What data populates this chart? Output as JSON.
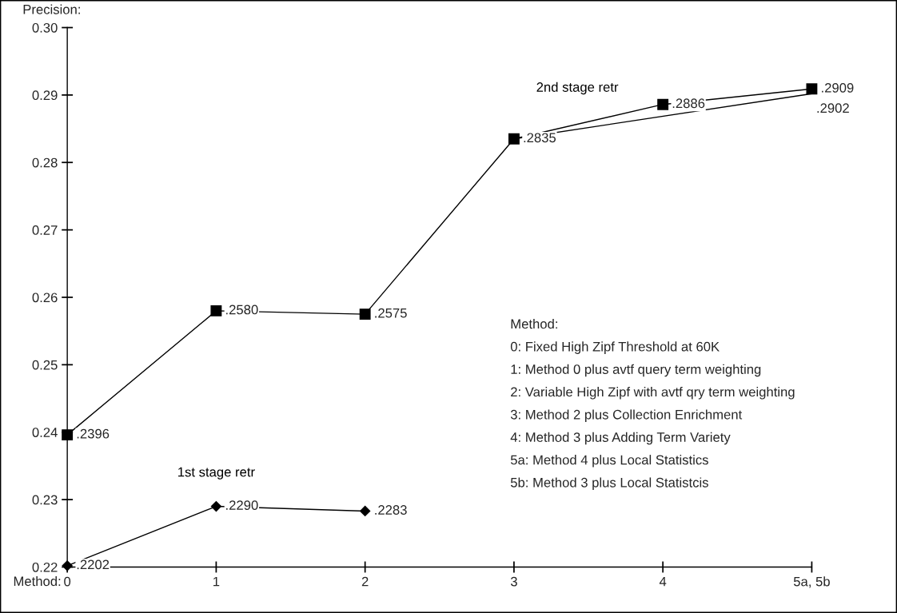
{
  "chart_data": {
    "type": "line",
    "ylabel": "Precision:",
    "xlabel": "Method:",
    "categories": [
      "0",
      "1",
      "2",
      "3",
      "4",
      "5a, 5b"
    ],
    "ylim": [
      0.22,
      0.3
    ],
    "yticks": [
      {
        "value": 0.22,
        "label": "0.22"
      },
      {
        "value": 0.23,
        "label": "0.23"
      },
      {
        "value": 0.24,
        "label": "0.24"
      },
      {
        "value": 0.25,
        "label": "0.25"
      },
      {
        "value": 0.26,
        "label": "0.26"
      },
      {
        "value": 0.27,
        "label": "0.27"
      },
      {
        "value": 0.28,
        "label": "0.28"
      },
      {
        "value": 0.29,
        "label": "0.29"
      },
      {
        "value": 0.3,
        "label": "0.30"
      }
    ],
    "grid": false,
    "legend": false,
    "series": [
      {
        "name": "2nd stage retr",
        "color": "#000000",
        "marker": "square",
        "values": [
          0.2396,
          0.258,
          0.2575,
          0.2835,
          0.2886,
          0.2909
        ],
        "value_labels": [
          ".2396",
          ".2580",
          ".2575",
          ".2835",
          ".2886",
          ".2909"
        ]
      },
      {
        "name": "1st stage retr",
        "color": "#000000",
        "marker": "diamond",
        "values": [
          0.2202,
          0.229,
          0.2283,
          null,
          null,
          null
        ],
        "value_labels": [
          ".2202",
          ".2290",
          ".2283",
          null,
          null,
          null
        ]
      },
      {
        "color": "#000000",
        "marker": "none",
        "x": [
          "3",
          "5a, 5b"
        ],
        "values": [
          0.2835,
          0.2902
        ],
        "value_labels": [
          null,
          ".2902"
        ]
      }
    ],
    "annotations": [
      "Method:",
      "0: Fixed High Zipf Threshold at 60K",
      "1: Method 0 plus avtf query term weighting",
      "2: Variable High Zipf with avtf qry term weighting",
      "3: Method 2 plus Collection Enrichment",
      "4: Method 3 plus Adding Term Variety",
      "5a: Method 4 plus Local Statistics",
      "5b: Method 3 plus Local Statistcis"
    ]
  }
}
